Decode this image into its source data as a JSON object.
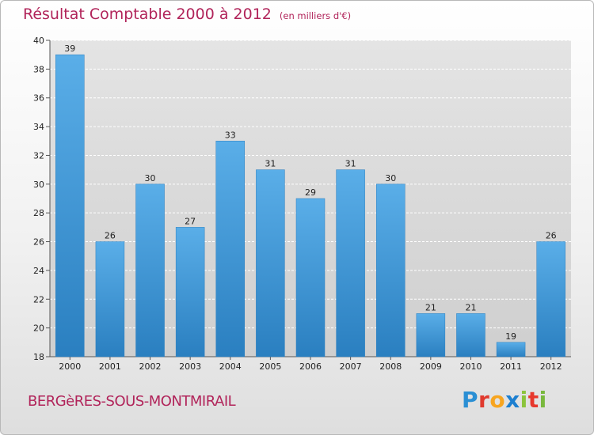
{
  "header": {
    "title": "Résultat Comptable 2000 à 2012",
    "subtitle": "(en milliers d'€)"
  },
  "footer": {
    "commune": "BERGèRES-SOUS-MONTMIRAIL",
    "logo": "Proxiti"
  },
  "colors": {
    "title": "#b1245a",
    "bar_top": "#5aaee8",
    "bar_bottom": "#2a7fc0",
    "logo_letters": [
      "#2a8fd4",
      "#e03a2e",
      "#f7a520",
      "#1c7fd0",
      "#8cc43c",
      "#e7382d",
      "#79b83d"
    ]
  },
  "chart_data": {
    "type": "bar",
    "title": "Résultat Comptable 2000 à 2012",
    "ylabel": "en milliers d'€",
    "categories": [
      "2000",
      "2001",
      "2002",
      "2003",
      "2004",
      "2005",
      "2006",
      "2007",
      "2008",
      "2009",
      "2010",
      "2011",
      "2012"
    ],
    "values": [
      39,
      26,
      30,
      27,
      33,
      31,
      29,
      31,
      30,
      21,
      21,
      19,
      26
    ],
    "ylim": [
      18,
      40
    ],
    "yticks": [
      18,
      20,
      22,
      24,
      26,
      28,
      30,
      32,
      34,
      36,
      38,
      40
    ],
    "grid": true
  }
}
